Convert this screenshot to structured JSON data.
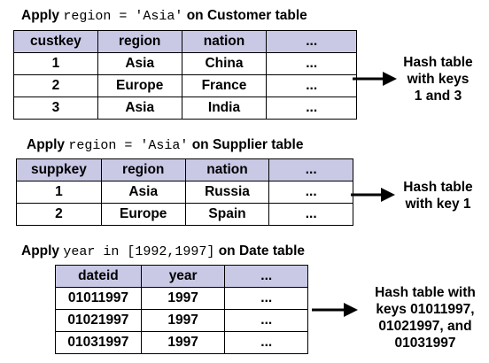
{
  "customer": {
    "caption": {
      "pre": "Apply ",
      "code": "region = 'Asia'",
      "post": " on Customer table"
    },
    "headers": [
      "custkey",
      "region",
      "nation",
      "..."
    ],
    "rows": [
      [
        "1",
        "Asia",
        "China",
        "..."
      ],
      [
        "2",
        "Europe",
        "France",
        "..."
      ],
      [
        "3",
        "Asia",
        "India",
        "..."
      ]
    ],
    "result": [
      "Hash table",
      "with keys",
      "1 and 3"
    ]
  },
  "supplier": {
    "caption": {
      "pre": "Apply ",
      "code": "region = 'Asia'",
      "post": " on Supplier table"
    },
    "headers": [
      "suppkey",
      "region",
      "nation",
      "..."
    ],
    "rows": [
      [
        "1",
        "Asia",
        "Russia",
        "..."
      ],
      [
        "2",
        "Europe",
        "Spain",
        "..."
      ]
    ],
    "result": [
      "Hash table",
      "with key 1"
    ]
  },
  "date": {
    "caption": {
      "pre": "Apply ",
      "code": "year in [1992,1997]",
      "post": " on Date table"
    },
    "headers": [
      "dateid",
      "year",
      "..."
    ],
    "rows": [
      [
        "01011997",
        "1997",
        "..."
      ],
      [
        "01021997",
        "1997",
        "..."
      ],
      [
        "01031997",
        "1997",
        "..."
      ]
    ],
    "result": [
      "Hash table with",
      "keys 01011997,",
      "01021997, and",
      "01031997"
    ]
  },
  "colors": {
    "header_fill": "#c9c9e6",
    "border": "#000000"
  }
}
